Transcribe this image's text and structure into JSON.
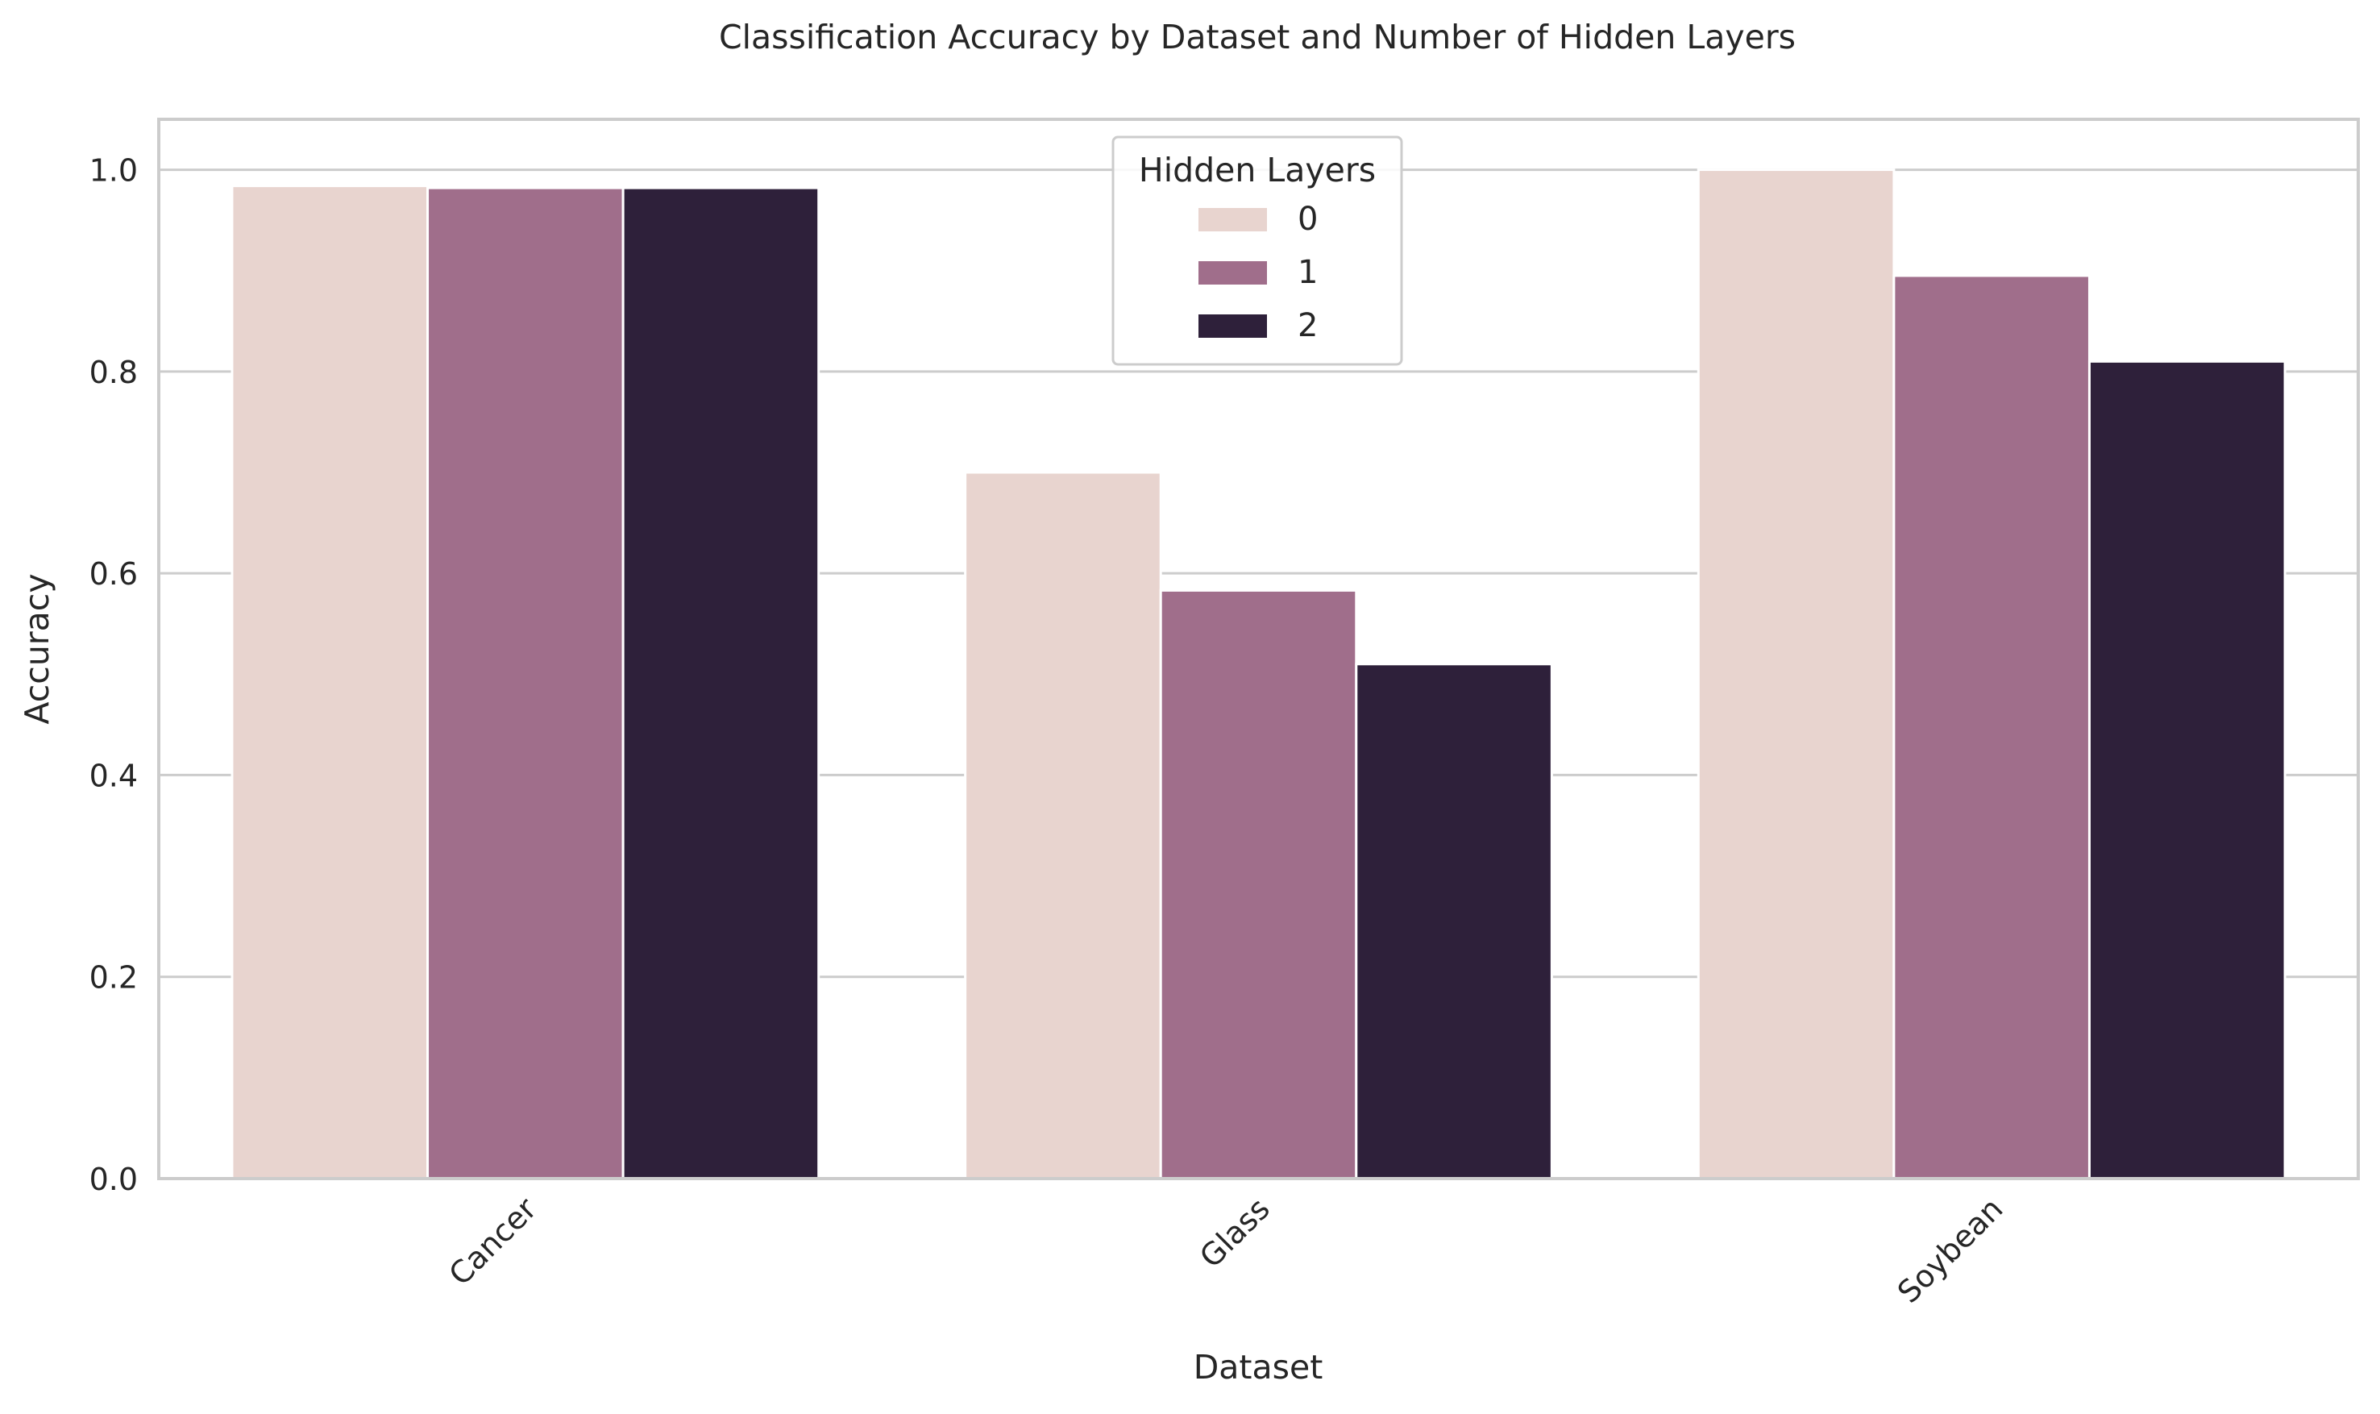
{
  "chart_data": {
    "type": "bar",
    "title": "Classification Accuracy by Dataset and Number of Hidden Layers",
    "xlabel": "Dataset",
    "ylabel": "Accuracy",
    "categories": [
      "Cancer",
      "Glass",
      "Soybean"
    ],
    "ylim": [
      0,
      1.05
    ],
    "yticks": [
      0.0,
      0.2,
      0.4,
      0.6,
      0.8,
      1.0
    ],
    "ytick_labels": [
      "0.0",
      "0.2",
      "0.4",
      "0.6",
      "0.8",
      "1.0"
    ],
    "grid": "horizontal",
    "legend": {
      "title": "Hidden Layers",
      "placement": "top-center"
    },
    "series": [
      {
        "name": "0",
        "color": "#e8d4cf",
        "values": [
          0.984,
          0.7,
          1.0
        ]
      },
      {
        "name": "1",
        "color": "#a06e8b",
        "values": [
          0.982,
          0.583,
          0.895
        ]
      },
      {
        "name": "2",
        "color": "#2e203a",
        "values": [
          0.982,
          0.51,
          0.81
        ]
      }
    ]
  }
}
